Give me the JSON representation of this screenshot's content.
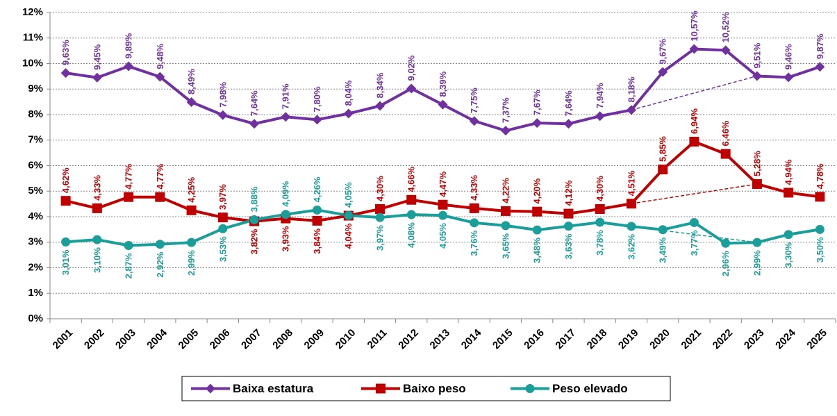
{
  "chart_data": {
    "type": "line",
    "categories": [
      "2001",
      "2002",
      "2003",
      "2004",
      "2005",
      "2006",
      "2007",
      "2008",
      "2009",
      "2010",
      "2011",
      "2012",
      "2013",
      "2014",
      "2015",
      "2016",
      "2017",
      "2018",
      "2019",
      "2020",
      "2021",
      "2022",
      "2023",
      "2024",
      "2025"
    ],
    "series": [
      {
        "name": "Baixa estatura",
        "color": "#7030a0",
        "marker": "diamond",
        "values": [
          9.63,
          9.45,
          9.89,
          9.48,
          8.49,
          7.98,
          7.64,
          7.91,
          7.8,
          8.04,
          8.34,
          9.02,
          8.39,
          7.75,
          7.37,
          7.67,
          7.64,
          7.94,
          8.18,
          9.67,
          10.57,
          10.52,
          9.51,
          9.46,
          9.87
        ],
        "value_labels": [
          "9,63%",
          "9,45%",
          "9,89%",
          "9,48%",
          "8,49%",
          "7,98%",
          "7,64%",
          "7,91%",
          "7,80%",
          "8,04%",
          "8,34%",
          "9,02%",
          "8,39%",
          "7,75%",
          "7,37%",
          "7,67%",
          "7,64%",
          "7,94%",
          "8,18%",
          "9,67%",
          "10,57%",
          "10,52%",
          "9,51%",
          "9,46%",
          "9,87%"
        ]
      },
      {
        "name": "Baixo peso",
        "color": "#c00000",
        "marker": "square",
        "values": [
          4.62,
          4.33,
          4.77,
          4.77,
          4.25,
          3.97,
          3.82,
          3.93,
          3.84,
          4.04,
          4.3,
          4.66,
          4.47,
          4.33,
          4.22,
          4.2,
          4.12,
          4.3,
          4.51,
          5.85,
          6.94,
          6.46,
          5.28,
          4.94,
          4.78
        ],
        "value_labels": [
          "4,62%",
          "4,33%",
          "4,77%",
          "4,77%",
          "4,25%",
          "3,97%",
          "3,82%",
          "3,93%",
          "3,84%",
          "4,04%",
          "4,30%",
          "4,66%",
          "4,47%",
          "4,33%",
          "4,22%",
          "4,20%",
          "4,12%",
          "4,30%",
          "4,51%",
          "5,85%",
          "6,94%",
          "6,46%",
          "5,28%",
          "4,94%",
          "4,78%"
        ]
      },
      {
        "name": "Peso elevado",
        "color": "#1a9e99",
        "marker": "circle",
        "values": [
          3.01,
          3.1,
          2.87,
          2.92,
          2.99,
          3.53,
          3.88,
          4.09,
          4.26,
          4.05,
          3.97,
          4.08,
          4.05,
          3.76,
          3.65,
          3.48,
          3.63,
          3.78,
          3.62,
          3.49,
          3.77,
          2.96,
          2.99,
          3.3,
          3.5
        ],
        "value_labels": [
          "3,01%",
          "3,10%",
          "2,87%",
          "2,92%",
          "2,99%",
          "3,53%",
          "3,88%",
          "4,09%",
          "4,26%",
          "4,05%",
          "3,97%",
          "4,08%",
          "4,05%",
          "3,76%",
          "3,65%",
          "3,48%",
          "3,63%",
          "3,78%",
          "3,62%",
          "3,49%",
          "3,77%",
          "2,96%",
          "2,99%",
          "3,30%",
          "3,50%"
        ]
      }
    ],
    "trend": [
      "2019",
      "2023"
    ],
    "ylim": [
      0,
      12
    ],
    "yticks": [
      {
        "value": 0,
        "label": "0%"
      },
      {
        "value": 1,
        "label": "1%"
      },
      {
        "value": 2,
        "label": "2%"
      },
      {
        "value": 3,
        "label": "3%"
      },
      {
        "value": 4,
        "label": "4%"
      },
      {
        "value": 5,
        "label": "5%"
      },
      {
        "value": 6,
        "label": "6%"
      },
      {
        "value": 7,
        "label": "7%"
      },
      {
        "value": 8,
        "label": "8%"
      },
      {
        "value": 9,
        "label": "9%"
      },
      {
        "value": 10,
        "label": "10%"
      },
      {
        "value": 11,
        "label": "11%"
      },
      {
        "value": 12,
        "label": "12%"
      }
    ],
    "grid": true,
    "legend": "bottom"
  }
}
